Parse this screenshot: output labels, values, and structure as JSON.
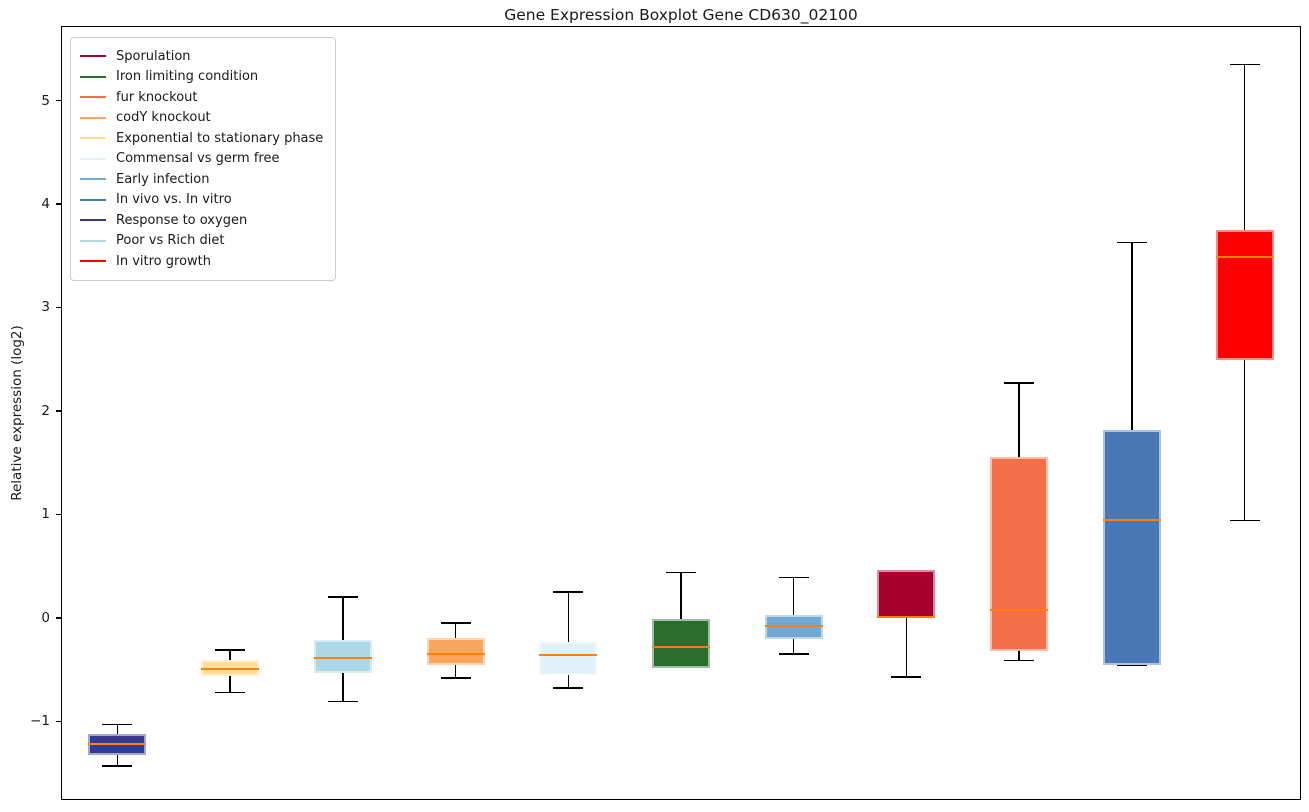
{
  "figure": {
    "background": "#ffffff"
  },
  "chart_data": {
    "type": "boxplot",
    "title": "Gene Expression Boxplot Gene CD630_02100",
    "xlabel": "",
    "ylabel": "Relative expression (log2)",
    "ylim": [
      -1.76,
      5.72
    ],
    "xlim": [
      0.5,
      11.5
    ],
    "yticks": [
      -1,
      0,
      1,
      2,
      3,
      4,
      5
    ],
    "grid": false,
    "median_color": "#ff7f0e",
    "whisker_color": "#000000",
    "legend_position": "upper-left",
    "legend_items": [
      {
        "label": "Sporulation",
        "color": "#a6002c"
      },
      {
        "label": "Iron limiting condition",
        "color": "#2a6e2e"
      },
      {
        "label": "fur knockout",
        "color": "#f46f48"
      },
      {
        "label": "codY knockout",
        "color": "#fca55d"
      },
      {
        "label": "Exponential to stationary phase",
        "color": "#ffdf96"
      },
      {
        "label": "Commensal vs germ free",
        "color": "#e1f1f9"
      },
      {
        "label": "Early infection",
        "color": "#72a8d1"
      },
      {
        "label": "In vivo vs. In vitro",
        "color": "#4979b5"
      },
      {
        "label": "Response to oxygen",
        "color": "#333a93"
      },
      {
        "label": "Poor vs Rich diet",
        "color": "#add8e6"
      },
      {
        "label": "In vitro growth",
        "color": "#ff0000"
      }
    ],
    "boxes": [
      {
        "position": 1,
        "label": "Response to oxygen",
        "color": "#333a93",
        "whislo": -1.43,
        "q1": -1.33,
        "med": -1.22,
        "q3": -1.12,
        "whishi": -1.03
      },
      {
        "position": 2,
        "label": "Exponential to stationary phase",
        "color": "#ffdf96",
        "whislo": -0.72,
        "q1": -0.56,
        "med": -0.49,
        "q3": -0.41,
        "whishi": -0.31
      },
      {
        "position": 3,
        "label": "Poor vs Rich diet",
        "color": "#add8e6",
        "whislo": -0.81,
        "q1": -0.53,
        "med": -0.39,
        "q3": -0.21,
        "whishi": 0.2
      },
      {
        "position": 4,
        "label": "codY knockout",
        "color": "#fca55d",
        "whislo": -0.58,
        "q1": -0.46,
        "med": -0.35,
        "q3": -0.19,
        "whishi": -0.05
      },
      {
        "position": 5,
        "label": "Commensal vs germ free",
        "color": "#e1f1f9",
        "whislo": -0.68,
        "q1": -0.55,
        "med": -0.36,
        "q3": -0.23,
        "whishi": 0.25
      },
      {
        "position": 6,
        "label": "Iron limiting condition",
        "color": "#2a6e2e",
        "whislo": -0.48,
        "q1": -0.48,
        "med": -0.28,
        "q3": -0.01,
        "whishi": 0.44
      },
      {
        "position": 7,
        "label": "Early infection",
        "color": "#72a8d1",
        "whislo": -0.35,
        "q1": -0.2,
        "med": -0.08,
        "q3": 0.03,
        "whishi": 0.39
      },
      {
        "position": 8,
        "label": "Sporulation",
        "color": "#a6002c",
        "whislo": -0.57,
        "q1": 0.0,
        "med": 0.01,
        "q3": 0.46,
        "whishi": 0.46
      },
      {
        "position": 9,
        "label": "fur knockout",
        "color": "#f46f48",
        "whislo": -0.41,
        "q1": -0.32,
        "med": 0.08,
        "q3": 1.55,
        "whishi": 2.27
      },
      {
        "position": 10,
        "label": "In vivo vs. In vitro",
        "color": "#4979b5",
        "whislo": -0.46,
        "q1": -0.46,
        "med": 0.95,
        "q3": 1.82,
        "whishi": 3.63
      },
      {
        "position": 11,
        "label": "In vitro growth",
        "color": "#ff0000",
        "whislo": 0.94,
        "q1": 2.49,
        "med": 3.49,
        "q3": 3.75,
        "whishi": 5.35
      }
    ]
  }
}
